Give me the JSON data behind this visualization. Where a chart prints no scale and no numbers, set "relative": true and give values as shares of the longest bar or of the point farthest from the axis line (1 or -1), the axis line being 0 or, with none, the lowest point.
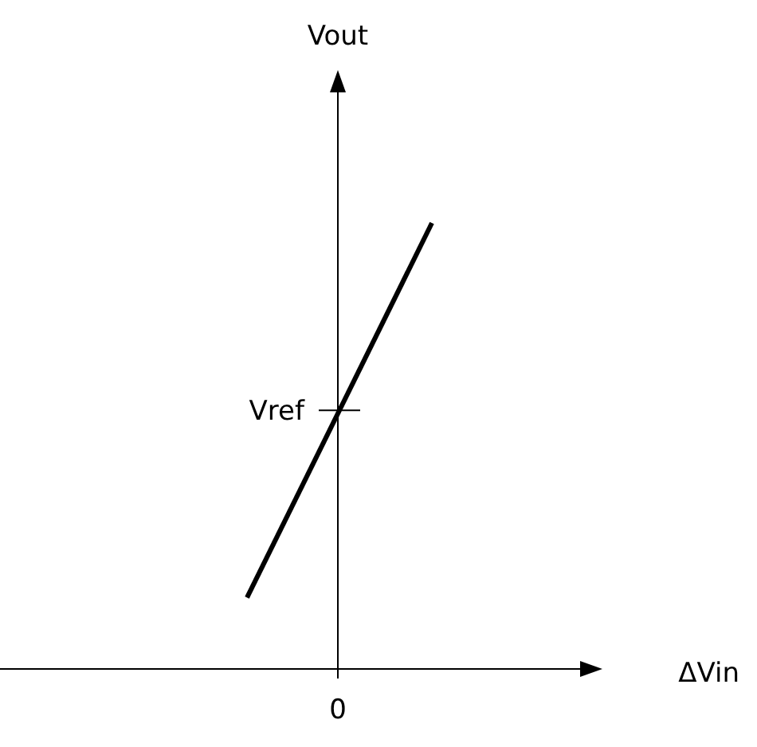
{
  "chart_data": {
    "type": "line",
    "relative": true,
    "xlabel": "ΔVin",
    "categories": [
      null,
      null
    ],
    "series": [
      {
        "color": "#000000",
        "values": [
          0.16,
          1
        ]
      }
    ],
    "ref_lines": [
      {
        "axis": "y",
        "value": 0.58,
        "label": "Vref"
      }
    ],
    "annotations": [
      "Vout",
      "0"
    ]
  }
}
